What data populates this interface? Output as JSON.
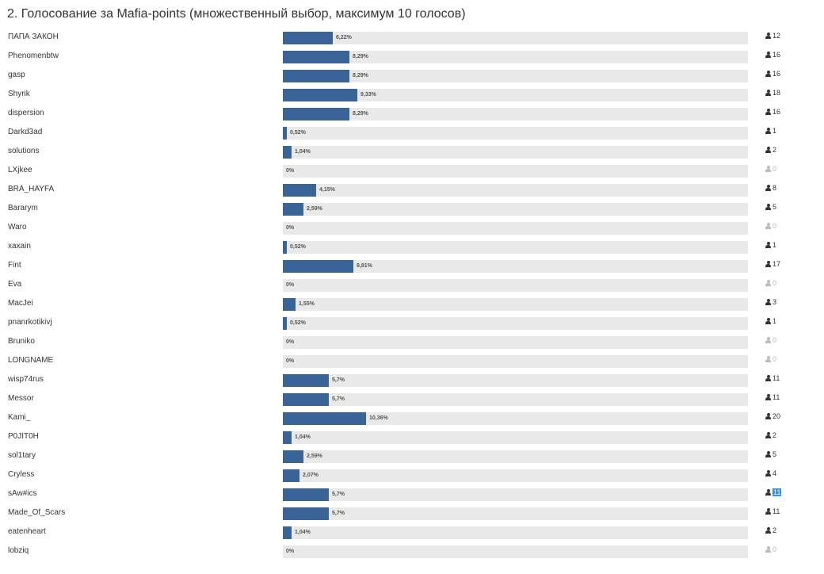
{
  "poll": {
    "title": "2. Голосование за Mafia-points (множественный выбор, максимум 10 голосов)"
  },
  "colors": {
    "bar_fill": "#3b6496",
    "bar_track": "#e9e9e9",
    "zero_votes": "#bbbbbb",
    "highlight": "#3b8ee0"
  },
  "chart_data": {
    "type": "bar",
    "categories": [
      "ПАПА ЗАКОН",
      "Phenomenbtw",
      "gasp",
      "Shyrik",
      "dispersion",
      "Darkd3ad",
      "solutions",
      "LXjkee",
      "BRA_HAYFA",
      "Bararym",
      "Waro",
      "xaxain",
      "Fint",
      "Eva",
      "MacJei",
      "pnanrkotikivj",
      "Bruniko",
      "LONGNAME",
      "wisp74rus",
      "Messor",
      "Kami_",
      "P0JIT0H",
      "sol1tary",
      "Cryless",
      "sAw#ics",
      "Made_Of_Scars",
      "eatenheart",
      "lobziq"
    ],
    "percent_labels": [
      "6,22%",
      "8,29%",
      "8,29%",
      "9,33%",
      "8,29%",
      "0,52%",
      "1,04%",
      "0%",
      "4,15%",
      "2,59%",
      "0%",
      "0,52%",
      "8,81%",
      "0%",
      "1,55%",
      "0,52%",
      "0%",
      "0%",
      "5,7%",
      "5,7%",
      "10,36%",
      "1,04%",
      "2,59%",
      "2,07%",
      "5,7%",
      "5,7%",
      "1,04%",
      "0%"
    ],
    "values": [
      6.22,
      8.29,
      8.29,
      9.33,
      8.29,
      0.52,
      1.04,
      0,
      4.15,
      2.59,
      0,
      0.52,
      8.81,
      0,
      1.55,
      0.52,
      0,
      0,
      5.7,
      5.7,
      10.36,
      1.04,
      2.59,
      2.07,
      5.7,
      5.7,
      1.04,
      0
    ],
    "votes": [
      12,
      16,
      16,
      18,
      16,
      1,
      2,
      0,
      8,
      5,
      0,
      1,
      17,
      0,
      3,
      1,
      0,
      0,
      11,
      11,
      20,
      2,
      5,
      4,
      11,
      11,
      2,
      0
    ],
    "highlighted_index": 24,
    "xlim": [
      0,
      58
    ]
  }
}
